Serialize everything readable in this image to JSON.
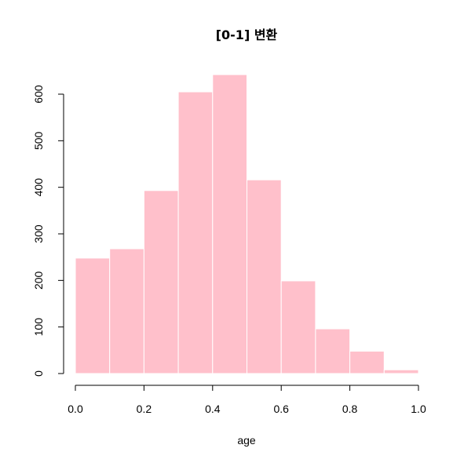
{
  "chart_data": {
    "type": "bar",
    "title": "[0-1] 변환",
    "xlabel": "age",
    "ylabel": "",
    "bin_edges": [
      0.0,
      0.1,
      0.2,
      0.3,
      0.4,
      0.5,
      0.6,
      0.7,
      0.8,
      0.9,
      1.0
    ],
    "values": [
      248,
      268,
      393,
      605,
      642,
      416,
      199,
      96,
      48,
      8
    ],
    "xlim": [
      0.0,
      1.0
    ],
    "ylim": [
      0,
      600
    ],
    "x_ticks": [
      "0.0",
      "0.2",
      "0.4",
      "0.6",
      "0.8",
      "1.0"
    ],
    "y_ticks": [
      "0",
      "100",
      "200",
      "300",
      "400",
      "500",
      "600"
    ],
    "bar_color": "#FFC0CB",
    "bar_border_color": "#FFFFFF",
    "grid": false,
    "legend": "none"
  }
}
